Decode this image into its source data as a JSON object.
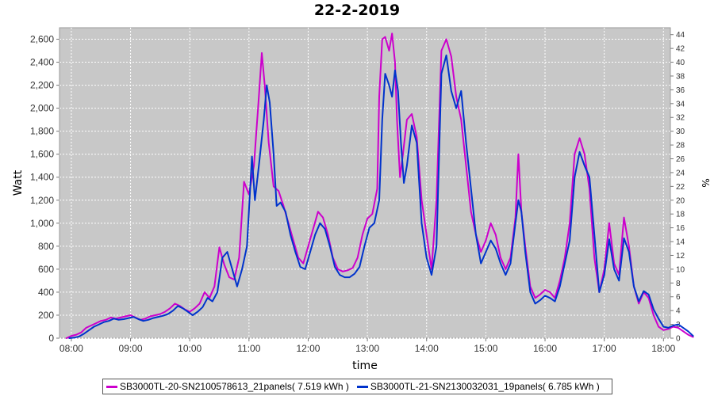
{
  "chart_data": {
    "type": "line",
    "title": "22-2-2019",
    "xlabel": "time",
    "ylabel": "Watt",
    "y2label": "%",
    "x_ticks": [
      "08:00",
      "09:00",
      "10:00",
      "11:00",
      "12:00",
      "13:00",
      "14:00",
      "15:00",
      "16:00",
      "17:00",
      "18:00"
    ],
    "y_ticks": [
      "0",
      "200",
      "400",
      "600",
      "800",
      "1,000",
      "1,200",
      "1,400",
      "1,600",
      "1,800",
      "2,000",
      "2,200",
      "2,400",
      "2,600"
    ],
    "y2_ticks": [
      "0",
      "2",
      "4",
      "6",
      "8",
      "10",
      "12",
      "14",
      "16",
      "18",
      "20",
      "22",
      "24",
      "26",
      "28",
      "30",
      "32",
      "34",
      "36",
      "38",
      "40",
      "42",
      "44"
    ],
    "ylim": [
      0,
      2700
    ],
    "y2lim": [
      0,
      45
    ],
    "xlim": [
      "07:48",
      "18:07"
    ],
    "grid": true,
    "legend_position": "bottom",
    "series": [
      {
        "name": "SB3000TL-20-SN2100578613_21panels( 7.519 kWh )",
        "color": "#cc00cc",
        "points": [
          [
            "07:55",
            0
          ],
          [
            "08:00",
            20
          ],
          [
            "08:05",
            30
          ],
          [
            "08:10",
            50
          ],
          [
            "08:15",
            90
          ],
          [
            "08:20",
            110
          ],
          [
            "08:25",
            130
          ],
          [
            "08:30",
            150
          ],
          [
            "08:35",
            160
          ],
          [
            "08:40",
            180
          ],
          [
            "08:45",
            170
          ],
          [
            "08:50",
            180
          ],
          [
            "08:55",
            190
          ],
          [
            "09:00",
            200
          ],
          [
            "09:05",
            180
          ],
          [
            "09:10",
            160
          ],
          [
            "09:15",
            170
          ],
          [
            "09:20",
            190
          ],
          [
            "09:25",
            200
          ],
          [
            "09:30",
            210
          ],
          [
            "09:35",
            230
          ],
          [
            "09:40",
            260
          ],
          [
            "09:45",
            300
          ],
          [
            "09:50",
            280
          ],
          [
            "09:55",
            250
          ],
          [
            "10:00",
            230
          ],
          [
            "10:05",
            260
          ],
          [
            "10:10",
            300
          ],
          [
            "10:15",
            400
          ],
          [
            "10:20",
            350
          ],
          [
            "10:25",
            450
          ],
          [
            "10:30",
            790
          ],
          [
            "10:35",
            640
          ],
          [
            "10:40",
            530
          ],
          [
            "10:45",
            510
          ],
          [
            "10:50",
            700
          ],
          [
            "10:55",
            1360
          ],
          [
            "11:00",
            1250
          ],
          [
            "11:05",
            1500
          ],
          [
            "11:10",
            2100
          ],
          [
            "11:13",
            2480
          ],
          [
            "11:16",
            2200
          ],
          [
            "11:20",
            1700
          ],
          [
            "11:25",
            1320
          ],
          [
            "11:30",
            1280
          ],
          [
            "11:35",
            1150
          ],
          [
            "11:40",
            1000
          ],
          [
            "11:45",
            850
          ],
          [
            "11:50",
            700
          ],
          [
            "11:55",
            650
          ],
          [
            "12:00",
            800
          ],
          [
            "12:05",
            950
          ],
          [
            "12:10",
            1100
          ],
          [
            "12:15",
            1050
          ],
          [
            "12:20",
            900
          ],
          [
            "12:25",
            700
          ],
          [
            "12:30",
            600
          ],
          [
            "12:35",
            580
          ],
          [
            "12:40",
            590
          ],
          [
            "12:45",
            610
          ],
          [
            "12:50",
            700
          ],
          [
            "12:55",
            900
          ],
          [
            "13:00",
            1040
          ],
          [
            "13:05",
            1080
          ],
          [
            "13:10",
            1300
          ],
          [
            "13:12",
            2100
          ],
          [
            "13:15",
            2600
          ],
          [
            "13:18",
            2620
          ],
          [
            "13:22",
            2500
          ],
          [
            "13:25",
            2650
          ],
          [
            "13:28",
            2400
          ],
          [
            "13:30",
            1900
          ],
          [
            "13:33",
            1400
          ],
          [
            "13:36",
            1600
          ],
          [
            "13:40",
            1900
          ],
          [
            "13:45",
            1950
          ],
          [
            "13:50",
            1750
          ],
          [
            "13:55",
            1200
          ],
          [
            "14:00",
            900
          ],
          [
            "14:05",
            600
          ],
          [
            "14:10",
            1200
          ],
          [
            "14:15",
            2500
          ],
          [
            "14:20",
            2600
          ],
          [
            "14:25",
            2450
          ],
          [
            "14:30",
            2100
          ],
          [
            "14:35",
            1900
          ],
          [
            "14:40",
            1500
          ],
          [
            "14:45",
            1100
          ],
          [
            "14:50",
            900
          ],
          [
            "14:55",
            750
          ],
          [
            "15:00",
            850
          ],
          [
            "15:05",
            1000
          ],
          [
            "15:10",
            900
          ],
          [
            "15:15",
            700
          ],
          [
            "15:20",
            600
          ],
          [
            "15:25",
            700
          ],
          [
            "15:30",
            1050
          ],
          [
            "15:33",
            1600
          ],
          [
            "15:36",
            1100
          ],
          [
            "15:40",
            800
          ],
          [
            "15:45",
            450
          ],
          [
            "15:50",
            350
          ],
          [
            "15:55",
            380
          ],
          [
            "16:00",
            420
          ],
          [
            "16:05",
            400
          ],
          [
            "16:10",
            350
          ],
          [
            "16:15",
            500
          ],
          [
            "16:20",
            700
          ],
          [
            "16:25",
            1000
          ],
          [
            "16:30",
            1600
          ],
          [
            "16:35",
            1740
          ],
          [
            "16:40",
            1600
          ],
          [
            "16:45",
            1300
          ],
          [
            "16:50",
            700
          ],
          [
            "16:55",
            400
          ],
          [
            "17:00",
            600
          ],
          [
            "17:05",
            1000
          ],
          [
            "17:10",
            650
          ],
          [
            "17:15",
            550
          ],
          [
            "17:20",
            1050
          ],
          [
            "17:25",
            800
          ],
          [
            "17:30",
            450
          ],
          [
            "17:35",
            300
          ],
          [
            "17:40",
            400
          ],
          [
            "17:45",
            350
          ],
          [
            "17:50",
            200
          ],
          [
            "17:55",
            100
          ],
          [
            "18:00",
            70
          ],
          [
            "18:05",
            80
          ],
          [
            "18:10",
            100
          ],
          [
            "18:15",
            90
          ],
          [
            "18:20",
            60
          ],
          [
            "18:25",
            30
          ],
          [
            "18:30",
            10
          ]
        ]
      },
      {
        "name": "SB3000TL-21-SN2130032031_19panels( 6.785 kWh )",
        "color": "#0033cc",
        "points": [
          [
            "07:58",
            0
          ],
          [
            "08:03",
            5
          ],
          [
            "08:08",
            15
          ],
          [
            "08:13",
            40
          ],
          [
            "08:18",
            70
          ],
          [
            "08:23",
            100
          ],
          [
            "08:28",
            120
          ],
          [
            "08:33",
            140
          ],
          [
            "08:38",
            150
          ],
          [
            "08:43",
            170
          ],
          [
            "08:48",
            160
          ],
          [
            "08:53",
            165
          ],
          [
            "08:58",
            175
          ],
          [
            "09:03",
            185
          ],
          [
            "09:08",
            165
          ],
          [
            "09:13",
            150
          ],
          [
            "09:18",
            160
          ],
          [
            "09:23",
            175
          ],
          [
            "09:28",
            185
          ],
          [
            "09:33",
            195
          ],
          [
            "09:38",
            210
          ],
          [
            "09:43",
            240
          ],
          [
            "09:48",
            280
          ],
          [
            "09:53",
            260
          ],
          [
            "09:58",
            230
          ],
          [
            "10:03",
            200
          ],
          [
            "10:08",
            230
          ],
          [
            "10:13",
            270
          ],
          [
            "10:18",
            350
          ],
          [
            "10:23",
            320
          ],
          [
            "10:28",
            400
          ],
          [
            "10:33",
            700
          ],
          [
            "10:38",
            750
          ],
          [
            "10:43",
            600
          ],
          [
            "10:48",
            450
          ],
          [
            "10:53",
            600
          ],
          [
            "10:58",
            800
          ],
          [
            "11:03",
            1580
          ],
          [
            "11:06",
            1200
          ],
          [
            "11:10",
            1500
          ],
          [
            "11:15",
            1900
          ],
          [
            "11:18",
            2200
          ],
          [
            "11:21",
            2050
          ],
          [
            "11:25",
            1600
          ],
          [
            "11:28",
            1150
          ],
          [
            "11:32",
            1180
          ],
          [
            "11:37",
            1100
          ],
          [
            "11:42",
            900
          ],
          [
            "11:47",
            750
          ],
          [
            "11:52",
            620
          ],
          [
            "11:57",
            600
          ],
          [
            "12:02",
            750
          ],
          [
            "12:07",
            900
          ],
          [
            "12:12",
            1000
          ],
          [
            "12:17",
            950
          ],
          [
            "12:22",
            800
          ],
          [
            "12:27",
            620
          ],
          [
            "12:32",
            550
          ],
          [
            "12:37",
            530
          ],
          [
            "12:42",
            530
          ],
          [
            "12:47",
            560
          ],
          [
            "12:52",
            620
          ],
          [
            "12:57",
            800
          ],
          [
            "13:02",
            960
          ],
          [
            "13:07",
            1000
          ],
          [
            "13:12",
            1200
          ],
          [
            "13:15",
            1900
          ],
          [
            "13:18",
            2300
          ],
          [
            "13:22",
            2200
          ],
          [
            "13:25",
            2100
          ],
          [
            "13:28",
            2330
          ],
          [
            "13:31",
            2150
          ],
          [
            "13:34",
            1700
          ],
          [
            "13:37",
            1350
          ],
          [
            "13:40",
            1500
          ],
          [
            "13:45",
            1850
          ],
          [
            "13:50",
            1700
          ],
          [
            "13:55",
            1000
          ],
          [
            "14:00",
            700
          ],
          [
            "14:05",
            550
          ],
          [
            "14:10",
            800
          ],
          [
            "14:15",
            2300
          ],
          [
            "14:20",
            2460
          ],
          [
            "14:25",
            2150
          ],
          [
            "14:30",
            2000
          ],
          [
            "14:35",
            2150
          ],
          [
            "14:40",
            1700
          ],
          [
            "14:45",
            1300
          ],
          [
            "14:50",
            900
          ],
          [
            "14:55",
            650
          ],
          [
            "15:00",
            750
          ],
          [
            "15:05",
            850
          ],
          [
            "15:10",
            780
          ],
          [
            "15:15",
            650
          ],
          [
            "15:20",
            550
          ],
          [
            "15:25",
            650
          ],
          [
            "15:30",
            1000
          ],
          [
            "15:33",
            1200
          ],
          [
            "15:36",
            1100
          ],
          [
            "15:40",
            750
          ],
          [
            "15:45",
            400
          ],
          [
            "15:50",
            300
          ],
          [
            "15:55",
            330
          ],
          [
            "16:00",
            370
          ],
          [
            "16:05",
            350
          ],
          [
            "16:10",
            320
          ],
          [
            "16:15",
            450
          ],
          [
            "16:20",
            650
          ],
          [
            "16:25",
            850
          ],
          [
            "16:30",
            1400
          ],
          [
            "16:35",
            1620
          ],
          [
            "16:40",
            1500
          ],
          [
            "16:45",
            1400
          ],
          [
            "16:50",
            900
          ],
          [
            "16:55",
            400
          ],
          [
            "17:00",
            550
          ],
          [
            "17:05",
            860
          ],
          [
            "17:10",
            600
          ],
          [
            "17:15",
            500
          ],
          [
            "17:20",
            870
          ],
          [
            "17:25",
            750
          ],
          [
            "17:30",
            450
          ],
          [
            "17:35",
            320
          ],
          [
            "17:40",
            410
          ],
          [
            "17:45",
            380
          ],
          [
            "17:50",
            250
          ],
          [
            "17:55",
            170
          ],
          [
            "18:00",
            100
          ],
          [
            "18:05",
            90
          ],
          [
            "18:10",
            110
          ],
          [
            "18:15",
            120
          ],
          [
            "18:20",
            90
          ],
          [
            "18:25",
            60
          ],
          [
            "18:30",
            20
          ]
        ]
      }
    ]
  }
}
